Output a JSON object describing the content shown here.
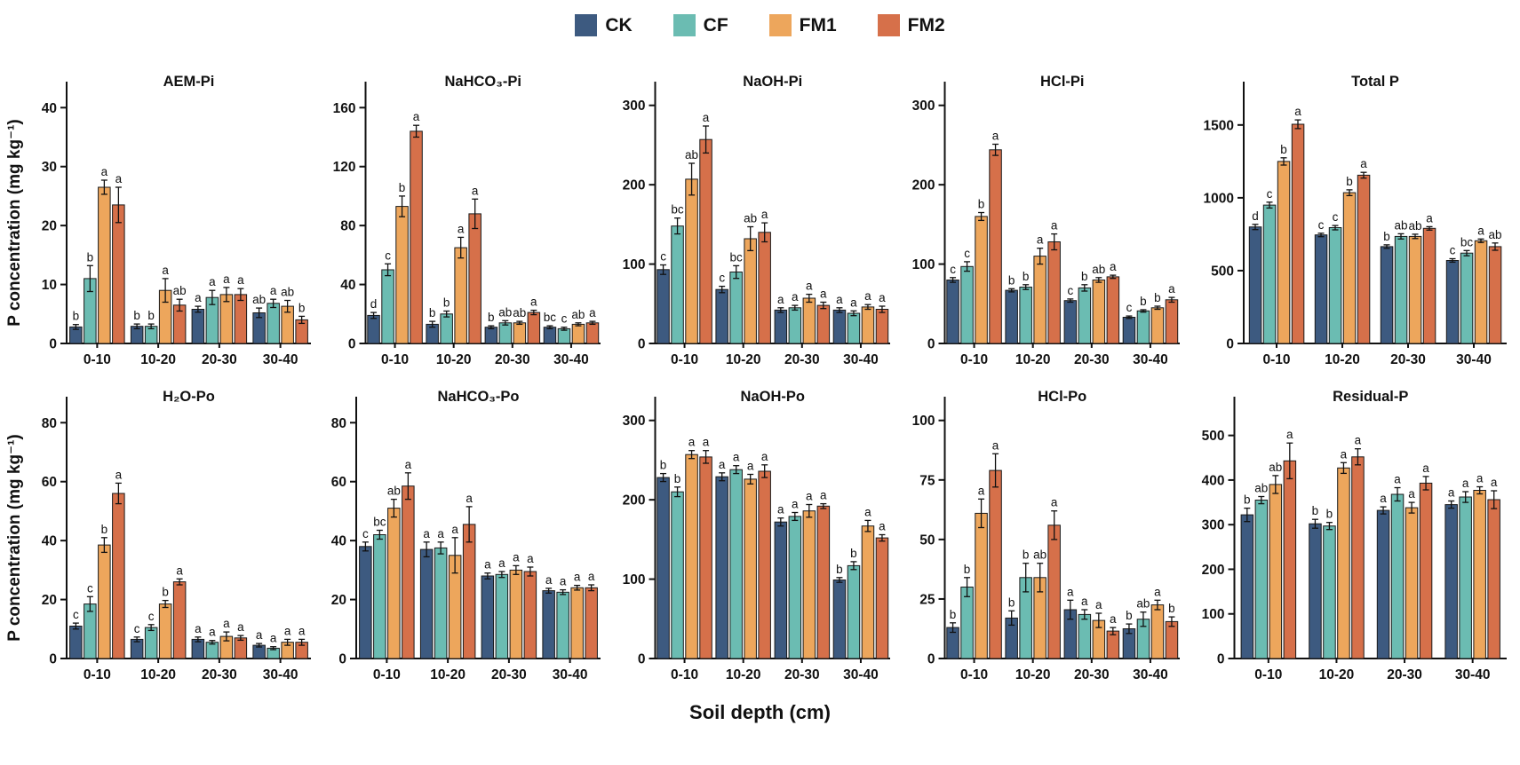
{
  "figure": {
    "xlabel": "Soil depth (cm)",
    "ylabel": "P concentration (mg kg⁻¹)"
  },
  "legend": {
    "items": [
      {
        "label": "CK",
        "color": "#3d5a80"
      },
      {
        "label": "CF",
        "color": "#6bbcb2"
      },
      {
        "label": "FM1",
        "color": "#eda65c"
      },
      {
        "label": "FM2",
        "color": "#d6704a"
      }
    ]
  },
  "chart_data": [
    {
      "type": "bar",
      "title": "AEM-Pi",
      "row": 1,
      "categories": [
        "0-10",
        "10-20",
        "20-30",
        "30-40"
      ],
      "ylim": [
        0,
        42
      ],
      "yticks": [
        0,
        10,
        20,
        30,
        40
      ],
      "series": [
        {
          "name": "CK",
          "values": [
            2.8,
            2.9,
            5.8,
            5.2
          ],
          "errors": [
            0.4,
            0.4,
            0.5,
            0.8
          ],
          "letters": [
            "b",
            "b",
            "a",
            "ab"
          ]
        },
        {
          "name": "CF",
          "values": [
            11,
            2.9,
            7.8,
            6.8
          ],
          "errors": [
            2.2,
            0.4,
            1.2,
            0.7
          ],
          "letters": [
            "b",
            "b",
            "a",
            "a"
          ]
        },
        {
          "name": "FM1",
          "values": [
            26.5,
            9,
            8.3,
            6.3
          ],
          "errors": [
            1.2,
            2,
            1.2,
            1
          ],
          "letters": [
            "a",
            "a",
            "a",
            "ab"
          ]
        },
        {
          "name": "FM2",
          "values": [
            23.5,
            6.5,
            8.3,
            4
          ],
          "errors": [
            3,
            1,
            1,
            0.6
          ],
          "letters": [
            "a",
            "ab",
            "a",
            "b"
          ]
        }
      ]
    },
    {
      "type": "bar",
      "title": "NaHCO₃-Pi",
      "row": 1,
      "categories": [
        "0-10",
        "10-20",
        "20-30",
        "30-40"
      ],
      "ylim": [
        0,
        168
      ],
      "yticks": [
        0,
        40,
        80,
        120,
        160
      ],
      "series": [
        {
          "name": "CK",
          "values": [
            19,
            13,
            11,
            11
          ],
          "errors": [
            2,
            2,
            1,
            1
          ],
          "letters": [
            "d",
            "b",
            "b",
            "bc"
          ]
        },
        {
          "name": "CF",
          "values": [
            50,
            20,
            14,
            10
          ],
          "errors": [
            4,
            2,
            1.5,
            1
          ],
          "letters": [
            "c",
            "b",
            "ab",
            "c"
          ]
        },
        {
          "name": "FM1",
          "values": [
            93,
            65,
            14,
            13
          ],
          "errors": [
            7,
            7,
            1,
            1
          ],
          "letters": [
            "b",
            "a",
            "ab",
            "ab"
          ]
        },
        {
          "name": "FM2",
          "values": [
            144,
            88,
            21,
            14
          ],
          "errors": [
            4,
            10,
            1.5,
            1
          ],
          "letters": [
            "a",
            "a",
            "a",
            "a"
          ]
        }
      ]
    },
    {
      "type": "bar",
      "title": "NaOH-Pi",
      "row": 1,
      "categories": [
        "0-10",
        "10-20",
        "20-30",
        "30-40"
      ],
      "ylim": [
        0,
        312
      ],
      "yticks": [
        0,
        100,
        200,
        300
      ],
      "series": [
        {
          "name": "CK",
          "values": [
            93,
            68,
            42,
            42
          ],
          "errors": [
            6,
            4,
            3,
            3
          ],
          "letters": [
            "c",
            "c",
            "a",
            "a"
          ]
        },
        {
          "name": "CF",
          "values": [
            148,
            90,
            45,
            38
          ],
          "errors": [
            10,
            8,
            3,
            3
          ],
          "letters": [
            "bc",
            "bc",
            "a",
            "a"
          ]
        },
        {
          "name": "FM1",
          "values": [
            207,
            132,
            57,
            46
          ],
          "errors": [
            20,
            15,
            5,
            3
          ],
          "letters": [
            "ab",
            "ab",
            "a",
            "a"
          ]
        },
        {
          "name": "FM2",
          "values": [
            257,
            140,
            48,
            43
          ],
          "errors": [
            17,
            12,
            4,
            4
          ],
          "letters": [
            "a",
            "a",
            "a",
            "a"
          ]
        }
      ]
    },
    {
      "type": "bar",
      "title": "HCl-Pi",
      "row": 1,
      "categories": [
        "0-10",
        "10-20",
        "20-30",
        "30-40"
      ],
      "ylim": [
        0,
        312
      ],
      "yticks": [
        0,
        100,
        200,
        300
      ],
      "series": [
        {
          "name": "CK",
          "values": [
            80,
            67,
            54,
            33
          ],
          "errors": [
            3,
            2,
            2,
            1.5
          ],
          "letters": [
            "c",
            "b",
            "c",
            "c"
          ]
        },
        {
          "name": "CF",
          "values": [
            97,
            71,
            70,
            41
          ],
          "errors": [
            6,
            3,
            4,
            1.5
          ],
          "letters": [
            "c",
            "b",
            "b",
            "b"
          ]
        },
        {
          "name": "FM1",
          "values": [
            160,
            110,
            80,
            45
          ],
          "errors": [
            5,
            10,
            3,
            2
          ],
          "letters": [
            "b",
            "a",
            "ab",
            "b"
          ]
        },
        {
          "name": "FM2",
          "values": [
            244,
            128,
            84,
            55
          ],
          "errors": [
            7,
            10,
            2,
            3
          ],
          "letters": [
            "a",
            "a",
            "a",
            "a"
          ]
        }
      ]
    },
    {
      "type": "bar",
      "title": "Total P",
      "row": 1,
      "categories": [
        "0-10",
        "10-20",
        "20-30",
        "30-40"
      ],
      "ylim": [
        0,
        1700
      ],
      "yticks": [
        0,
        500,
        1000,
        1500
      ],
      "series": [
        {
          "name": "CK",
          "values": [
            800,
            745,
            665,
            570
          ],
          "errors": [
            18,
            12,
            12,
            12
          ],
          "letters": [
            "d",
            "c",
            "b",
            "c"
          ]
        },
        {
          "name": "CF",
          "values": [
            950,
            795,
            735,
            620
          ],
          "errors": [
            20,
            15,
            18,
            18
          ],
          "letters": [
            "c",
            "c",
            "ab",
            "bc"
          ]
        },
        {
          "name": "FM1",
          "values": [
            1250,
            1035,
            735,
            705
          ],
          "errors": [
            25,
            20,
            15,
            12
          ],
          "letters": [
            "b",
            "b",
            "ab",
            "a"
          ]
        },
        {
          "name": "FM2",
          "values": [
            1505,
            1155,
            790,
            665
          ],
          "errors": [
            30,
            20,
            12,
            25
          ],
          "letters": [
            "a",
            "a",
            "a",
            "ab"
          ]
        }
      ]
    },
    {
      "type": "bar",
      "title": "H₂O-Po",
      "row": 2,
      "categories": [
        "0-10",
        "10-20",
        "20-30",
        "30-40"
      ],
      "ylim": [
        0,
        84
      ],
      "yticks": [
        0,
        20,
        40,
        60,
        80
      ],
      "series": [
        {
          "name": "CK",
          "values": [
            11,
            6.5,
            6.5,
            4.5
          ],
          "errors": [
            1,
            0.8,
            0.8,
            0.6
          ],
          "letters": [
            "c",
            "c",
            "a",
            "a"
          ]
        },
        {
          "name": "CF",
          "values": [
            18.5,
            10.5,
            5.5,
            3.5
          ],
          "errors": [
            2.5,
            1,
            0.6,
            0.5
          ],
          "letters": [
            "c",
            "c",
            "a",
            "a"
          ]
        },
        {
          "name": "FM1",
          "values": [
            38.5,
            18.5,
            7.5,
            5.5
          ],
          "errors": [
            2.5,
            1.2,
            1.5,
            1
          ],
          "letters": [
            "b",
            "b",
            "a",
            "a"
          ]
        },
        {
          "name": "FM2",
          "values": [
            56,
            26,
            7,
            5.5
          ],
          "errors": [
            3.5,
            1,
            0.8,
            1
          ],
          "letters": [
            "a",
            "a",
            "a",
            "a"
          ]
        }
      ]
    },
    {
      "type": "bar",
      "title": "NaHCO₃-Po",
      "row": 2,
      "categories": [
        "0-10",
        "10-20",
        "20-30",
        "30-40"
      ],
      "ylim": [
        0,
        84
      ],
      "yticks": [
        0,
        20,
        40,
        60,
        80
      ],
      "series": [
        {
          "name": "CK",
          "values": [
            38,
            37,
            28,
            23
          ],
          "errors": [
            1.5,
            2.5,
            1,
            0.8
          ],
          "letters": [
            "c",
            "a",
            "a",
            "a"
          ]
        },
        {
          "name": "CF",
          "values": [
            42,
            37.5,
            28.5,
            22.5
          ],
          "errors": [
            1.5,
            2,
            1,
            0.8
          ],
          "letters": [
            "bc",
            "a",
            "a",
            "a"
          ]
        },
        {
          "name": "FM1",
          "values": [
            51,
            35,
            30,
            24
          ],
          "errors": [
            3,
            6,
            1.5,
            0.8
          ],
          "letters": [
            "ab",
            "a",
            "a",
            "a"
          ]
        },
        {
          "name": "FM2",
          "values": [
            58.5,
            45.5,
            29.5,
            24
          ],
          "errors": [
            4.5,
            6,
            1.5,
            1
          ],
          "letters": [
            "a",
            "a",
            "a",
            "a"
          ]
        }
      ]
    },
    {
      "type": "bar",
      "title": "NaOH-Po",
      "row": 2,
      "categories": [
        "0-10",
        "10-20",
        "20-30",
        "30-40"
      ],
      "ylim": [
        0,
        312
      ],
      "yticks": [
        0,
        100,
        200,
        300
      ],
      "series": [
        {
          "name": "CK",
          "values": [
            228,
            229,
            172,
            99
          ],
          "errors": [
            5,
            5,
            5,
            3
          ],
          "letters": [
            "b",
            "a",
            "a",
            "b"
          ]
        },
        {
          "name": "CF",
          "values": [
            210,
            238,
            179,
            117
          ],
          "errors": [
            6,
            5,
            5,
            5
          ],
          "letters": [
            "b",
            "a",
            "a",
            "b"
          ]
        },
        {
          "name": "FM1",
          "values": [
            257,
            226,
            186,
            167
          ],
          "errors": [
            5,
            6,
            8,
            7
          ],
          "letters": [
            "a",
            "a",
            "a",
            "a"
          ]
        },
        {
          "name": "FM2",
          "values": [
            254,
            236,
            192,
            152
          ],
          "errors": [
            8,
            8,
            3,
            4
          ],
          "letters": [
            "a",
            "a",
            "a",
            "a"
          ]
        }
      ]
    },
    {
      "type": "bar",
      "title": "HCl-Po",
      "row": 2,
      "categories": [
        "0-10",
        "10-20",
        "20-30",
        "30-40"
      ],
      "ylim": [
        0,
        104
      ],
      "yticks": [
        0,
        25,
        50,
        75,
        100
      ],
      "series": [
        {
          "name": "CK",
          "values": [
            13,
            17,
            20.5,
            12.5
          ],
          "errors": [
            2,
            3,
            4,
            2
          ],
          "letters": [
            "b",
            "b",
            "a",
            "b"
          ]
        },
        {
          "name": "CF",
          "values": [
            30,
            34,
            18.5,
            16.5
          ],
          "errors": [
            4,
            6,
            2,
            3
          ],
          "letters": [
            "b",
            "b",
            "a",
            "ab"
          ]
        },
        {
          "name": "FM1",
          "values": [
            61,
            34,
            16,
            22.5
          ],
          "errors": [
            6,
            6,
            3,
            2
          ],
          "letters": [
            "a",
            "ab",
            "a",
            "a"
          ]
        },
        {
          "name": "FM2",
          "values": [
            79,
            56,
            11.5,
            15.5
          ],
          "errors": [
            7,
            6,
            1.5,
            2
          ],
          "letters": [
            "a",
            "a",
            "a",
            "b"
          ]
        }
      ]
    },
    {
      "type": "bar",
      "title": "Residual-P",
      "row": 2,
      "categories": [
        "0-10",
        "10-20",
        "20-30",
        "30-40"
      ],
      "ylim": [
        0,
        555
      ],
      "yticks": [
        0,
        100,
        200,
        300,
        400,
        500
      ],
      "series": [
        {
          "name": "CK",
          "values": [
            322,
            302,
            332,
            345
          ],
          "errors": [
            15,
            10,
            8,
            8
          ],
          "letters": [
            "b",
            "b",
            "a",
            "a"
          ]
        },
        {
          "name": "CF",
          "values": [
            355,
            297,
            368,
            362
          ],
          "errors": [
            8,
            8,
            15,
            12
          ],
          "letters": [
            "ab",
            "b",
            "a",
            "a"
          ]
        },
        {
          "name": "FM1",
          "values": [
            390,
            427,
            338,
            377
          ],
          "errors": [
            20,
            12,
            12,
            8
          ],
          "letters": [
            "ab",
            "a",
            "a",
            "a"
          ]
        },
        {
          "name": "FM2",
          "values": [
            443,
            452,
            393,
            356
          ],
          "errors": [
            40,
            18,
            15,
            20
          ],
          "letters": [
            "a",
            "a",
            "a",
            "a"
          ]
        }
      ]
    }
  ]
}
